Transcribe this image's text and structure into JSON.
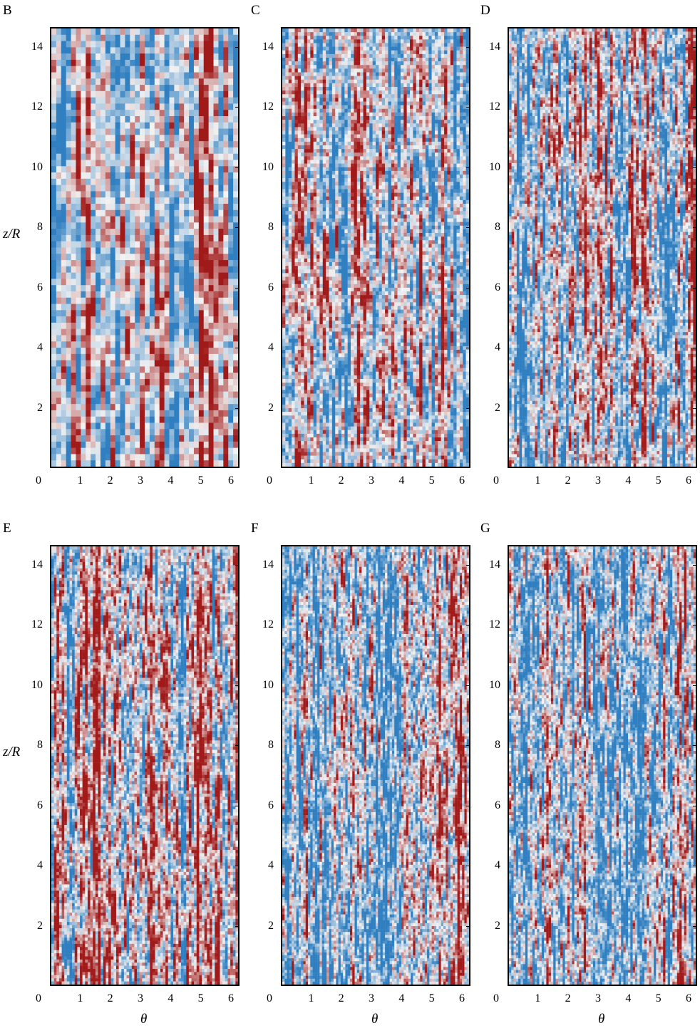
{
  "figure": {
    "panels": [
      {
        "id": "B",
        "label": "B",
        "style": "coarse",
        "seed": 11
      },
      {
        "id": "C",
        "label": "C",
        "style": "medium",
        "seed": 23
      },
      {
        "id": "D",
        "label": "D",
        "style": "fine",
        "seed": 37
      },
      {
        "id": "E",
        "label": "E",
        "style": "fine",
        "seed": 41
      },
      {
        "id": "F",
        "label": "F",
        "style": "finer",
        "seed": 53
      },
      {
        "id": "G",
        "label": "G",
        "style": "finer",
        "seed": 67
      }
    ],
    "y_axis_label": "z/R",
    "x_axis_label": "θ"
  },
  "chart_data": {
    "type": "heatmap",
    "colormap": {
      "low": "#2f7fc1",
      "mid": "#f2f2f2",
      "high": "#a11a1a"
    },
    "xlim": [
      0,
      6.283
    ],
    "ylim": [
      0,
      14.66
    ],
    "x_ticks": [
      0,
      1,
      2,
      3,
      4,
      5,
      6
    ],
    "y_ticks": [
      2,
      4,
      6,
      8,
      10,
      12,
      14
    ]
  }
}
